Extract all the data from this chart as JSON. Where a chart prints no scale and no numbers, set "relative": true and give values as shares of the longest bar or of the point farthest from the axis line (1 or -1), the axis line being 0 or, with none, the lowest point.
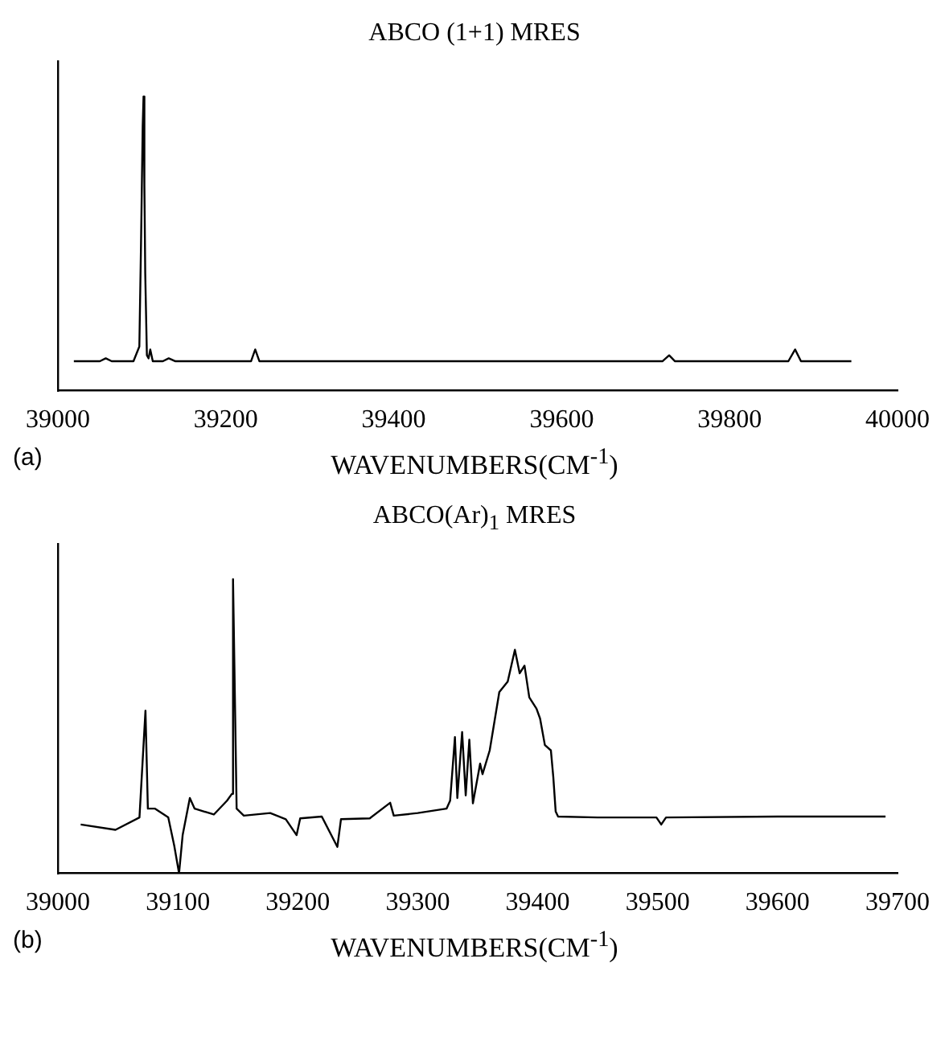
{
  "chart_data": [
    {
      "type": "line",
      "title": "ABCO (1+1) MRES",
      "xlabel": "WAVENUMBERS(CM$^{-1}$)",
      "annotations": [
        "(a)"
      ],
      "relative": true,
      "marker": "none",
      "line_style": "solid",
      "xlim": [
        39000,
        40000
      ],
      "xticks": [
        39000,
        39200,
        39400,
        39600,
        39800,
        40000
      ],
      "series": [
        {
          "color": "#000000",
          "x": [
            39019,
            39050,
            39057,
            39064,
            39090,
            39097,
            39099,
            39101,
            39102,
            39103,
            39104,
            39106,
            39108,
            39110,
            39113,
            39125,
            39132,
            39140,
            39230,
            39235,
            39240,
            39400,
            39600,
            39720,
            39728,
            39735,
            39870,
            39878,
            39885,
            39945
          ],
          "values": [
            0.1,
            0.1,
            0.11,
            0.1,
            0.1,
            0.15,
            0.5,
            0.9,
            1,
            0.7,
            0.4,
            0.12,
            0.11,
            0.14,
            0.1,
            0.1,
            0.11,
            0.1,
            0.1,
            0.14,
            0.1,
            0.1,
            0.1,
            0.1,
            0.12,
            0.1,
            0.1,
            0.14,
            0.1,
            0.1
          ]
        }
      ]
    },
    {
      "type": "line",
      "title": "ABCO(Ar)$_{1}$ MRES",
      "xlabel": "WAVENUMBERS(CM$^{-1}$)",
      "annotations": [
        "(b)"
      ],
      "relative": true,
      "marker": "none",
      "line_style": "solid",
      "xlim": [
        39000,
        39700
      ],
      "xticks": [
        39000,
        39100,
        39200,
        39300,
        39400,
        39500,
        39600,
        39700
      ],
      "series": [
        {
          "color": "#000000",
          "x": [
            39019,
            39048,
            39068,
            39073,
            39075,
            39081,
            39092,
            39097,
            39101,
            39104,
            39110,
            39114,
            39130,
            39141,
            39145,
            39146,
            39149,
            39155,
            39177,
            39190,
            39199,
            39202,
            39220,
            39233,
            39236,
            39260,
            39277,
            39280,
            39300,
            39324,
            39327,
            39331,
            39333,
            39337,
            39340,
            39343,
            39346,
            39352,
            39354,
            39360,
            39368,
            39375,
            39381,
            39385,
            39389,
            39393,
            39399,
            39402,
            39406,
            39411,
            39413,
            39415,
            39417,
            39450,
            39499,
            39503,
            39507,
            39600,
            39690
          ],
          "values": [
            0.166,
            0.148,
            0.19,
            0.553,
            0.22,
            0.22,
            0.19,
            0.094,
            0,
            0.13,
            0.256,
            0.22,
            0.2,
            0.247,
            0.27,
            1,
            0.22,
            0.196,
            0.205,
            0.184,
            0.13,
            0.187,
            0.193,
            0.09,
            0.184,
            0.187,
            0.24,
            0.196,
            0.205,
            0.22,
            0.247,
            0.463,
            0.256,
            0.48,
            0.265,
            0.454,
            0.238,
            0.373,
            0.337,
            0.418,
            0.616,
            0.652,
            0.76,
            0.68,
            0.706,
            0.598,
            0.56,
            0.526,
            0.436,
            0.418,
            0.328,
            0.21,
            0.193,
            0.19,
            0.19,
            0.166,
            0.19,
            0.193,
            0.193
          ]
        }
      ]
    }
  ]
}
